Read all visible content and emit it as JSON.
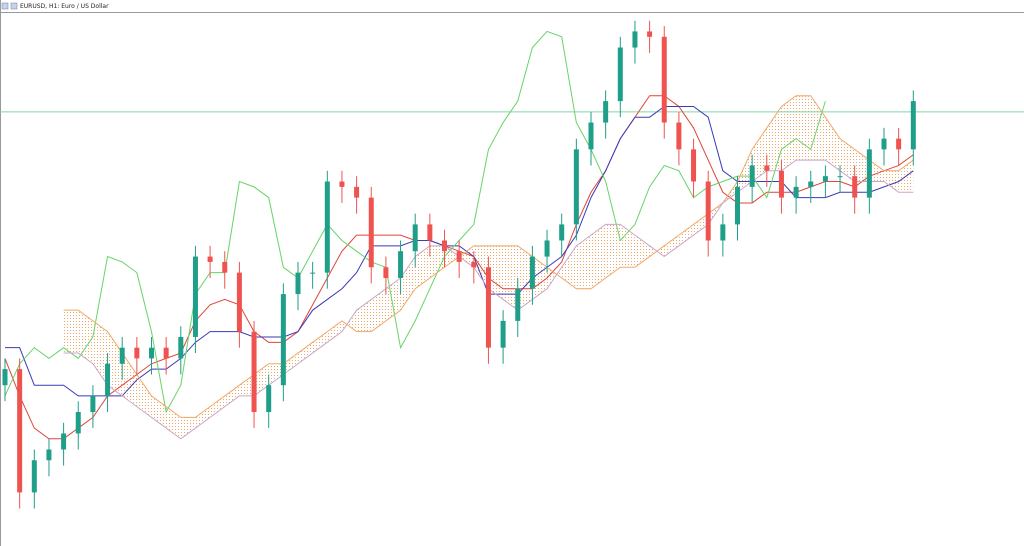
{
  "chart_data": {
    "type": "candlestick",
    "title": "EURUSD, H1: Euro / US Dollar",
    "ylim": [
      0,
      100
    ],
    "up_color": "#1f9e89",
    "down_color": "#ef5350",
    "hline": 81,
    "hline_color": "#7fd6a8",
    "open": [
      30,
      33,
      10,
      16,
      18,
      21,
      25,
      28,
      34,
      37,
      35,
      37,
      35,
      39,
      54,
      53,
      51,
      40,
      25,
      30,
      47,
      51,
      51,
      68,
      67,
      65,
      52,
      50,
      55,
      60,
      57,
      55,
      53,
      52,
      37,
      42,
      48,
      54,
      57,
      60,
      74,
      79,
      83,
      93,
      96,
      95,
      79,
      74,
      68,
      57,
      60,
      67,
      71,
      70,
      65,
      67,
      68,
      69,
      69,
      65,
      74,
      76,
      74
    ],
    "high": [
      35,
      35,
      18,
      20,
      23,
      27,
      30,
      36,
      39,
      39,
      39,
      39,
      41,
      56,
      56,
      55,
      53,
      42,
      32,
      49,
      53,
      53,
      70,
      70,
      69,
      67,
      54,
      57,
      62,
      62,
      59,
      57,
      55,
      54,
      44,
      50,
      56,
      59,
      62,
      76,
      81,
      85,
      95,
      98,
      98,
      97,
      81,
      76,
      70,
      62,
      69,
      73,
      73,
      72,
      69,
      70,
      71,
      71,
      71,
      76,
      78,
      78,
      85
    ],
    "low": [
      27,
      7,
      7,
      13,
      15,
      18,
      22,
      25,
      31,
      32,
      32,
      32,
      32,
      36,
      50,
      48,
      37,
      22,
      22,
      27,
      44,
      48,
      48,
      64,
      62,
      49,
      47,
      47,
      52,
      54,
      52,
      50,
      49,
      34,
      34,
      39,
      45,
      51,
      54,
      57,
      71,
      76,
      80,
      90,
      92,
      76,
      71,
      65,
      54,
      54,
      57,
      64,
      67,
      62,
      62,
      64,
      65,
      66,
      62,
      62,
      71,
      71,
      71
    ],
    "close": [
      33,
      10,
      16,
      18,
      21,
      25,
      28,
      34,
      37,
      35,
      37,
      35,
      39,
      54,
      53,
      51,
      40,
      25,
      30,
      47,
      51,
      51,
      68,
      67,
      65,
      52,
      50,
      55,
      60,
      57,
      55,
      53,
      52,
      37,
      42,
      48,
      54,
      57,
      60,
      74,
      79,
      83,
      93,
      96,
      95,
      79,
      74,
      68,
      57,
      60,
      67,
      71,
      70,
      65,
      67,
      68,
      69,
      69,
      65,
      74,
      76,
      74,
      83
    ],
    "lines": [
      {
        "color": "#e0443a",
        "values": [
          35,
          28,
          22,
          20,
          20,
          22,
          24,
          28,
          30,
          32,
          34,
          35,
          36,
          42,
          45,
          46,
          45,
          40,
          38,
          38,
          40,
          45,
          50,
          55,
          58,
          58,
          58,
          58,
          57,
          57,
          56,
          55,
          54,
          50,
          48,
          48,
          48,
          50,
          53,
          60,
          66,
          70,
          76,
          80,
          84,
          84,
          82,
          78,
          72,
          66,
          64,
          64,
          66,
          66,
          66,
          67,
          68,
          68,
          67,
          69,
          70,
          71,
          73
        ]
      },
      {
        "color": "#3a3ab8",
        "values": [
          37,
          37,
          30,
          30,
          30,
          28,
          28,
          28,
          28,
          31,
          33,
          33,
          35,
          38,
          40,
          40,
          40,
          39,
          39,
          39,
          40,
          44,
          46,
          48,
          51,
          56,
          56,
          56,
          57,
          57,
          56,
          56,
          54,
          47,
          47,
          47,
          50,
          52,
          54,
          58,
          65,
          70,
          76,
          80,
          80,
          82,
          82,
          82,
          80,
          70,
          68,
          68,
          68,
          68,
          65,
          65,
          65,
          66,
          66,
          66,
          67,
          68,
          70
        ]
      },
      {
        "color": "#66d466",
        "values": [
          28,
          34,
          37,
          35,
          37,
          35,
          39,
          54,
          53,
          51,
          40,
          25,
          30,
          47,
          51,
          51,
          68,
          67,
          65,
          52,
          50,
          55,
          60,
          57,
          55,
          53,
          52,
          37,
          42,
          48,
          54,
          57,
          60,
          74,
          79,
          83,
          93,
          96,
          95,
          79,
          74,
          68,
          57,
          60,
          67,
          71,
          70,
          65,
          67,
          68,
          69,
          69,
          65,
          74,
          76,
          74,
          83,
          null,
          null,
          null,
          null,
          null,
          null
        ]
      },
      {
        "color": "#f0a868",
        "values": [
          null,
          null,
          null,
          null,
          44,
          44,
          42,
          40,
          36,
          32,
          28,
          26,
          24,
          24,
          26,
          28,
          30,
          32,
          34,
          34,
          36,
          38,
          40,
          42,
          40,
          40,
          42,
          44,
          48,
          50,
          52,
          54,
          56,
          56,
          56,
          56,
          54,
          52,
          50,
          48,
          48,
          50,
          52,
          52,
          54,
          56,
          58,
          60,
          62,
          64,
          68,
          74,
          78,
          82,
          84,
          84,
          80,
          76,
          74,
          72,
          70,
          70,
          72
        ]
      },
      {
        "color": "#c8a8c8",
        "values": [
          null,
          null,
          null,
          null,
          36,
          36,
          34,
          30,
          28,
          26,
          24,
          22,
          20,
          22,
          24,
          26,
          28,
          28,
          30,
          32,
          34,
          36,
          38,
          40,
          44,
          46,
          48,
          50,
          54,
          56,
          56,
          54,
          52,
          48,
          46,
          44,
          46,
          48,
          52,
          56,
          58,
          60,
          60,
          58,
          56,
          54,
          56,
          58,
          60,
          64,
          66,
          68,
          70,
          70,
          72,
          72,
          72,
          70,
          68,
          68,
          68,
          66,
          66
        ]
      }
    ]
  }
}
